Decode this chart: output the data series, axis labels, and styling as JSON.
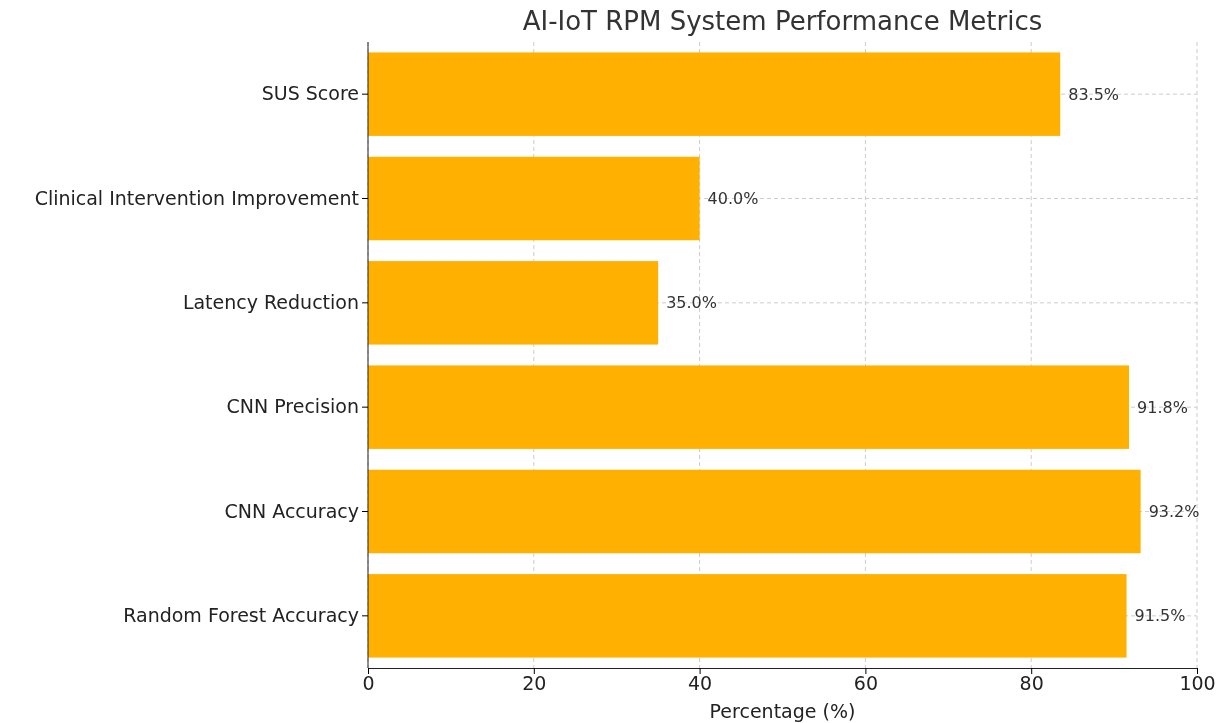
{
  "chart_data": {
    "type": "bar",
    "orientation": "horizontal",
    "title": "AI-IoT RPM System Performance Metrics",
    "xlabel": "Percentage (%)",
    "categories": [
      "SUS Score",
      "Clinical Intervention Improvement",
      "Latency Reduction",
      "CNN Precision",
      "CNN Accuracy",
      "Random Forest Accuracy"
    ],
    "values": [
      83.5,
      40.0,
      35.0,
      91.8,
      93.2,
      91.5
    ],
    "value_labels": [
      "83.5%",
      "40.0%",
      "35.0%",
      "91.8%",
      "93.2%",
      "91.5%"
    ],
    "color": "#ffb000",
    "xlim": [
      0,
      100
    ],
    "xticks": [
      0,
      20,
      40,
      60,
      80,
      100
    ],
    "grid": true
  }
}
